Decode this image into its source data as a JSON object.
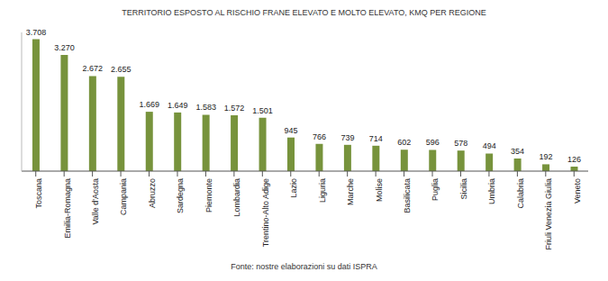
{
  "chart_data": {
    "type": "bar",
    "title": "TERRITORIO ESPOSTO AL RISCHIO FRANE ELEVATO E MOLTO ELEVATO, KMQ PER REGIONE",
    "subtitle": "Fonte: nostre elaborazioni su dati ISPRA",
    "categories": [
      "Toscana",
      "Emilia-Romagna",
      "Valle d'Aosta",
      "Campania",
      "Abruzzo",
      "Sardegna",
      "Piemonte",
      "Lombardia",
      "Trentino-Alto Adige",
      "Lazio",
      "Liguria",
      "Marche",
      "Molise",
      "Basilicata",
      "Puglia",
      "Sicilia",
      "Umbria",
      "Calabria",
      "Friuli Venezia Giulia",
      "Veneto"
    ],
    "values": [
      3708,
      3270,
      2672,
      2655,
      1669,
      1649,
      1583,
      1572,
      1501,
      945,
      766,
      739,
      714,
      602,
      596,
      578,
      494,
      354,
      192,
      126
    ],
    "value_labels": [
      "3.708",
      "3.270",
      "2.672",
      "2.655",
      "1.669",
      "1.649",
      "1.583",
      "1.572",
      "1.501",
      "945",
      "766",
      "739",
      "714",
      "602",
      "596",
      "578",
      "494",
      "354",
      "192",
      "126"
    ],
    "color": "#77933c",
    "ylim": [
      0,
      3900
    ],
    "grid": false,
    "data_labels": true,
    "tick_labels": "x"
  }
}
